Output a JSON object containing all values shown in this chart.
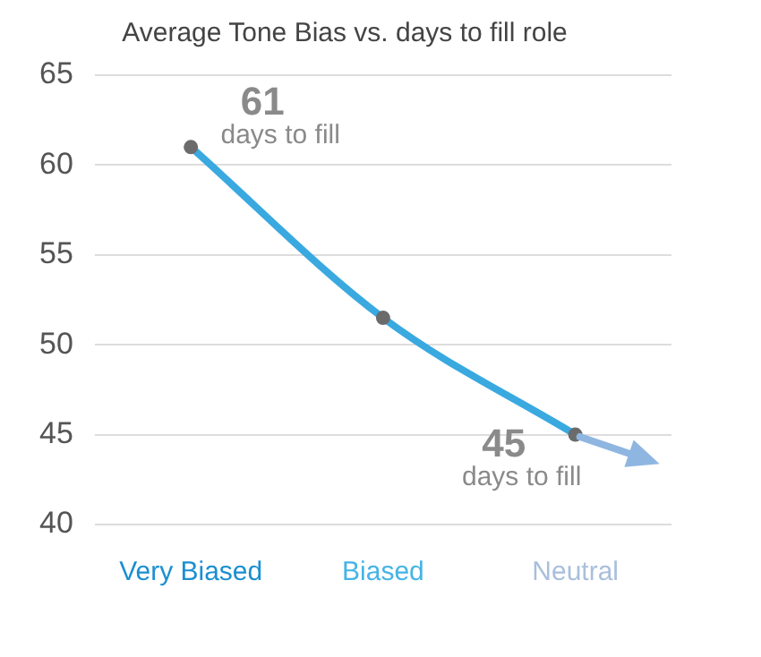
{
  "chart_data": {
    "type": "line",
    "title": "Average Tone Bias vs. days to fill role",
    "categories": [
      "Very Biased",
      "Biased",
      "Neutral"
    ],
    "series": [
      {
        "color": "#3aa9e0",
        "values": [
          61,
          51.5,
          45
        ],
        "value_labels": [
          "61 days to fill",
          null,
          "45 days to fill"
        ]
      }
    ],
    "ylim": [
      40,
      65
    ],
    "yticks": [
      40,
      45,
      50,
      55,
      60,
      65
    ],
    "grid": "y",
    "legend": false,
    "marker": "circle",
    "line_style": "solid"
  }
}
